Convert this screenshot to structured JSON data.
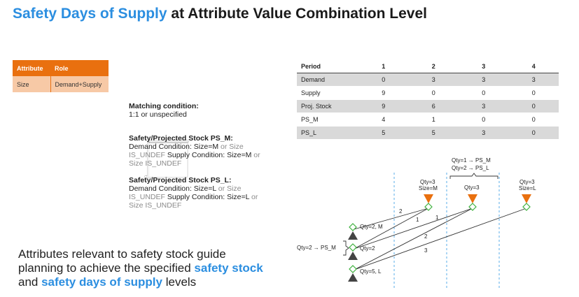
{
  "title": {
    "highlight": "Safety Days of Supply",
    "rest": " at Attribute Value Combination Level"
  },
  "attribute_table": {
    "headers": [
      "Attribute",
      "Role"
    ],
    "rows": [
      [
        "Size",
        "Demand+Supply"
      ]
    ]
  },
  "matching_note": {
    "heading": "Matching condition:",
    "heading_value": "1:1 or unspecified",
    "ps_m_heading": "Safety/Projected Stock PS_M:",
    "ps_m_line1_black": "Demand Condition: Size=M",
    "ps_m_line1_grey": " or Size IS_UNDEF",
    "ps_m_line2_black": " Supply Condition: Size=M",
    "ps_m_line2_grey": " or Size IS_UNDEF",
    "ps_l_heading": "Safety/Projected Stock PS_L:",
    "ps_l_line1_black": "Demand Condition: Size=L",
    "ps_l_line1_grey": " or Size IS_UNDEF",
    "ps_l_line2_black": " Supply Condition: Size=L",
    "ps_l_line2_grey": " or Size IS_UNDEF"
  },
  "period_table": {
    "headers": [
      "Period",
      "1",
      "2",
      "3",
      "4"
    ],
    "rows": [
      [
        "Demand",
        "0",
        "3",
        "3",
        "3"
      ],
      [
        "Supply",
        "9",
        "0",
        "0",
        "0"
      ],
      [
        "Proj. Stock",
        "9",
        "6",
        "3",
        "0"
      ],
      [
        "PS_M",
        "4",
        "1",
        "0",
        "0"
      ],
      [
        "PS_L",
        "5",
        "5",
        "3",
        "0"
      ]
    ]
  },
  "diagram": {
    "bracket_line1": "Qty=1 → PS_M",
    "bracket_line2": "Qty=2 → PS_L",
    "demand1_qty": "Qty=3",
    "demand1_size": "Size=M",
    "demand2_qty": "Qty=3",
    "demand3_qty": "Qty=3",
    "demand3_size": "Size=L",
    "supply1": "Qty=2, M",
    "supply2": "Qty=2",
    "supply3": "Qty=5, L",
    "left_label": "Qty=2 → PS_M",
    "edge_labels": [
      "2",
      "1",
      "1",
      "2",
      "3"
    ]
  },
  "statement": {
    "part1": "Attributes relevant to safety stock guide planning to achieve the specified ",
    "hl1": "safety stock",
    "part2": " and ",
    "hl2": "safety days of supply",
    "part3": " levels"
  },
  "colors": {
    "accent": "#2b8ee0",
    "orange": "#e9700f",
    "green": "#3fb23f"
  }
}
